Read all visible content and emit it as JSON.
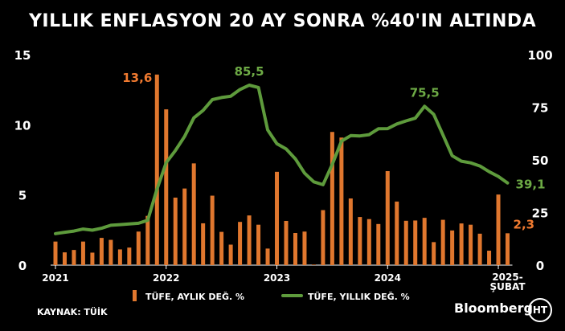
{
  "title": "YILLIK ENFLASYON 20 AY SONRA %40'IN ALTINDA",
  "source": "KAYNAK: TÜİK",
  "brand": "Bloomberg",
  "logo_text": "HT",
  "colors": {
    "background": "#000000",
    "bars": "#E0772E",
    "line": "#5E9B3C",
    "bar_label": "#F07A30",
    "line_label": "#6DAA45",
    "axis_text": "#FFFFFF"
  },
  "chart_data": {
    "type": "bar",
    "title": "YILLIK ENFLASYON 20 AY SONRA %40'IN ALTINDA",
    "x_tick_labels": [
      "2021",
      "2022",
      "2023",
      "2024",
      "2025-",
      "ŞUBAT"
    ],
    "left_axis": {
      "ylim": [
        0,
        15
      ],
      "ticks": [
        "0",
        "5",
        "10",
        "15"
      ]
    },
    "right_axis": {
      "ylim": [
        0,
        100
      ],
      "ticks": [
        "0",
        "25",
        "50",
        "75",
        "100"
      ]
    },
    "legend": {
      "position": "bottom",
      "entries": [
        "TÜFE, AYLIK DEĞ. %",
        "TÜFE, YILLIK DEĞ. %"
      ]
    },
    "months": [
      "2021-01",
      "2021-02",
      "2021-03",
      "2021-04",
      "2021-05",
      "2021-06",
      "2021-07",
      "2021-08",
      "2021-09",
      "2021-10",
      "2021-11",
      "2021-12",
      "2022-01",
      "2022-02",
      "2022-03",
      "2022-04",
      "2022-05",
      "2022-06",
      "2022-07",
      "2022-08",
      "2022-09",
      "2022-10",
      "2022-11",
      "2022-12",
      "2023-01",
      "2023-02",
      "2023-03",
      "2023-04",
      "2023-05",
      "2023-06",
      "2023-07",
      "2023-08",
      "2023-09",
      "2023-10",
      "2023-11",
      "2023-12",
      "2024-01",
      "2024-02",
      "2024-03",
      "2024-04",
      "2024-05",
      "2024-06",
      "2024-07",
      "2024-08",
      "2024-09",
      "2024-10",
      "2024-11",
      "2024-12",
      "2025-01",
      "2025-02"
    ],
    "series": [
      {
        "name": "TÜFE, AYLIK DEĞ. %",
        "type": "bar",
        "axis": "left",
        "values": [
          1.68,
          0.91,
          1.08,
          1.68,
          0.89,
          1.94,
          1.8,
          1.12,
          1.25,
          2.39,
          3.51,
          13.58,
          11.1,
          4.81,
          5.46,
          7.25,
          2.98,
          4.95,
          2.37,
          1.46,
          3.08,
          3.54,
          2.88,
          1.18,
          6.65,
          3.15,
          2.29,
          2.39,
          0.04,
          3.92,
          9.49,
          9.09,
          4.75,
          3.43,
          3.28,
          2.93,
          6.7,
          4.53,
          3.16,
          3.18,
          3.37,
          1.64,
          3.23,
          2.47,
          2.97,
          2.88,
          2.24,
          1.03,
          5.03,
          2.27
        ]
      },
      {
        "name": "TÜFE, YILLIK DEĞ. %",
        "type": "line",
        "axis": "right",
        "values": [
          14.97,
          15.61,
          16.19,
          17.14,
          16.59,
          17.53,
          18.95,
          19.25,
          19.58,
          19.89,
          21.31,
          36.08,
          48.69,
          54.44,
          61.14,
          69.97,
          73.5,
          78.62,
          79.6,
          80.21,
          83.45,
          85.51,
          84.39,
          64.27,
          57.68,
          55.18,
          50.51,
          43.68,
          39.59,
          38.21,
          47.83,
          58.94,
          61.53,
          61.36,
          61.98,
          64.77,
          64.86,
          67.07,
          68.5,
          69.8,
          75.45,
          71.6,
          61.78,
          51.97,
          49.38,
          48.58,
          47.09,
          44.38,
          42.12,
          39.05
        ]
      }
    ],
    "annotations": [
      {
        "series": 0,
        "month": "2021-12",
        "text": "13,6"
      },
      {
        "series": 1,
        "month": "2022-10",
        "text": "85,5"
      },
      {
        "series": 1,
        "month": "2024-05",
        "text": "75,5"
      },
      {
        "series": 1,
        "month": "2025-02",
        "text": "39,1"
      },
      {
        "series": 0,
        "month": "2025-02",
        "text": "2,3"
      }
    ]
  }
}
